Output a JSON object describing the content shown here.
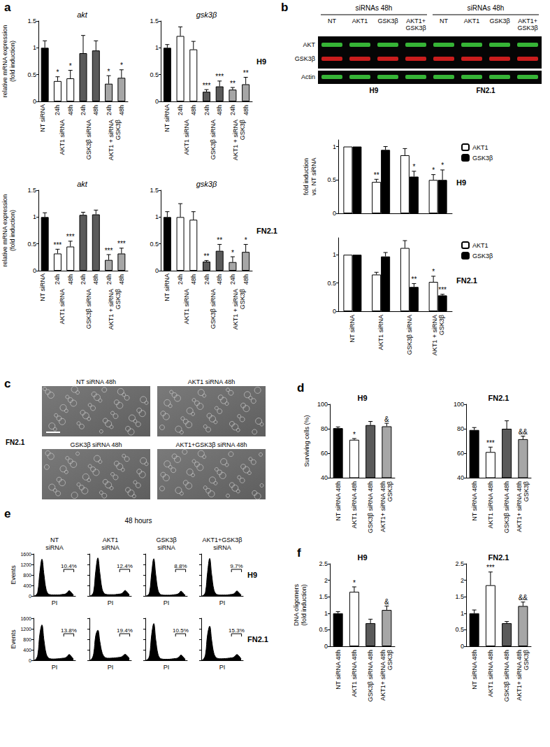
{
  "chart_data": [
    {
      "panel": "a",
      "type": "bar",
      "title": "akt",
      "y_label": "relative mRNA expression\n(fold induction)",
      "categories": [
        null,
        "24h",
        "48h",
        "24h",
        "48h",
        "24h",
        "48h"
      ],
      "bar_groups": [
        "NT siRNA",
        "AKT1 siRNA",
        "AKT1 siRNA",
        "GSK3β siRNA",
        "GSK3β siRNA",
        "AKT1 + siRNA\nGSK3β",
        "AKT1 + siRNA\nGSK3β"
      ],
      "values": [
        1.0,
        0.38,
        0.43,
        0.9,
        0.95,
        0.33,
        0.44
      ],
      "errors": [
        0.13,
        0.08,
        0.15,
        0.33,
        0.18,
        0.15,
        0.15
      ],
      "annotations": [
        null,
        "*",
        "*",
        null,
        null,
        "*",
        "*"
      ],
      "colors": [
        "#000000",
        "#ffffff",
        "#ffffff",
        "#5a5a5a",
        "#5a5a5a",
        "#a6a6a6",
        "#a6a6a6"
      ],
      "ylim": [
        0,
        1.5
      ],
      "yticks": [
        0,
        0.5,
        1,
        1.5
      ]
    },
    {
      "panel": "a",
      "type": "bar",
      "title": "gsk3β",
      "subtitle": "H9",
      "categories": [
        null,
        "24h",
        "48h",
        "24h",
        "48h",
        "24h",
        "48h"
      ],
      "bar_groups": [
        "NT siRNA",
        "AKT1 siRNA",
        "AKT1 siRNA",
        "GSK3β siRNA",
        "GSK3β siRNA",
        "AKT1 + siRNA\nGSK3β",
        "AKT1 + siRNA\nGSK3β"
      ],
      "values": [
        1.0,
        1.22,
        0.97,
        0.18,
        0.28,
        0.22,
        0.32
      ],
      "errors": [
        0.06,
        0.17,
        0.15,
        0.04,
        0.1,
        0.04,
        0.13
      ],
      "annotations": [
        null,
        null,
        null,
        "***",
        "***",
        "**",
        "**"
      ],
      "colors": [
        "#000000",
        "#ffffff",
        "#ffffff",
        "#5a5a5a",
        "#5a5a5a",
        "#a6a6a6",
        "#a6a6a6"
      ],
      "ylim": [
        0,
        1.5
      ],
      "yticks": [
        0,
        0.5,
        1,
        1.5
      ]
    },
    {
      "panel": "a",
      "type": "bar",
      "title": "akt",
      "y_label": "relative mRNA expression\n(fold induction)",
      "categories": [
        null,
        "24h",
        "48h",
        "24h",
        "48h",
        "24h",
        "48h"
      ],
      "bar_groups": [
        "NT siRNA",
        "AKT1 siRNA",
        "AKT1 siRNA",
        "GSK3β siRNA",
        "GSK3β siRNA",
        "AKT1 + siRNA\nGSK3β",
        "AKT1 + siRNA\nGSK3β"
      ],
      "values": [
        1.0,
        0.32,
        0.45,
        1.04,
        1.05,
        0.2,
        0.32
      ],
      "errors": [
        0.08,
        0.08,
        0.1,
        0.05,
        0.08,
        0.1,
        0.1
      ],
      "annotations": [
        null,
        "***",
        "***",
        null,
        null,
        "***",
        "***"
      ],
      "colors": [
        "#000000",
        "#ffffff",
        "#ffffff",
        "#5a5a5a",
        "#5a5a5a",
        "#a6a6a6",
        "#a6a6a6"
      ],
      "ylim": [
        0,
        1.5
      ],
      "yticks": [
        0,
        0.5,
        1,
        1.5
      ]
    },
    {
      "panel": "a",
      "type": "bar",
      "title": "gsk3β",
      "subtitle": "FN2.1",
      "categories": [
        null,
        "24h",
        "48h",
        "24h",
        "48h",
        "24h",
        "48h"
      ],
      "bar_groups": [
        "NT siRNA",
        "AKT1 siRNA",
        "AKT1 siRNA",
        "GSK3β siRNA",
        "GSK3β siRNA",
        "AKT1 + siRNA\nGSK3β",
        "AKT1 + siRNA\nGSK3β"
      ],
      "values": [
        1.0,
        1.0,
        0.95,
        0.17,
        0.37,
        0.16,
        0.35
      ],
      "errors": [
        0.1,
        0.25,
        0.15,
        0.02,
        0.12,
        0.1,
        0.14
      ],
      "annotations": [
        null,
        null,
        null,
        "**",
        "**",
        "*",
        "*"
      ],
      "colors": [
        "#000000",
        "#ffffff",
        "#ffffff",
        "#5a5a5a",
        "#5a5a5a",
        "#a6a6a6",
        "#a6a6a6"
      ],
      "ylim": [
        0,
        1.5
      ],
      "yticks": [
        0,
        0.5,
        1,
        1.5
      ]
    },
    {
      "panel": "b",
      "type": "bar",
      "subtitle": "H9",
      "y_label": "fold induction\nvs. NT siRNA",
      "categories": [
        null,
        null,
        null,
        null
      ],
      "series": [
        {
          "name": "AKT1",
          "color": "#ffffff",
          "values": [
            1,
            0.47,
            0.87,
            0.5
          ],
          "errors": [
            0,
            0.04,
            0.1,
            0.08
          ],
          "annotations": [
            null,
            "**",
            null,
            "*"
          ]
        },
        {
          "name": "GSK3β",
          "color": "#000000",
          "values": [
            1,
            0.95,
            0.55,
            0.5
          ],
          "errors": [
            0,
            0.05,
            0.08,
            0.15
          ],
          "annotations": [
            null,
            null,
            "*",
            "*"
          ]
        }
      ],
      "legend": "right",
      "ylim": [
        0,
        1.1
      ],
      "yticks": [
        0,
        0.5,
        1
      ],
      "tick_labels": "y"
    },
    {
      "panel": "b",
      "type": "bar",
      "subtitle": "FN2.1",
      "categories": [
        "NT siRNA",
        "AKT1 siRNA",
        "GSK3β siRNA",
        "AKT1 + siRNA\nGSK3β"
      ],
      "series": [
        {
          "name": "AKT1",
          "color": "#ffffff",
          "values": [
            1,
            0.65,
            1.12,
            0.52
          ],
          "errors": [
            0,
            0.04,
            0.13,
            0.1
          ],
          "annotations": [
            null,
            null,
            null,
            "*"
          ]
        },
        {
          "name": "GSK3β",
          "color": "#000000",
          "values": [
            1,
            0.97,
            0.43,
            0.28
          ],
          "errors": [
            0,
            0.07,
            0.06,
            0.02
          ],
          "annotations": [
            null,
            null,
            "**",
            "***"
          ]
        }
      ],
      "legend": "right",
      "ylim": [
        0,
        1.3
      ],
      "yticks": [
        0,
        0.5,
        1
      ]
    },
    {
      "panel": "d",
      "type": "bar",
      "title": "H9",
      "y_label": "Surviving cells (%)",
      "categories": [
        "NT siRNA 48h",
        "AKT1 siRNA 48h",
        "GSK3β siRNA 48h",
        "AKT1+ siRNA 48h\nGSK3β"
      ],
      "values": [
        80.5,
        71,
        83,
        82
      ],
      "errors": [
        1,
        1,
        3,
        2.5
      ],
      "annotations": [
        null,
        "*",
        null,
        "&"
      ],
      "colors": [
        "#000000",
        "#ffffff",
        "#5a5a5a",
        "#a6a6a6"
      ],
      "ylim": [
        40,
        100
      ],
      "yticks": [
        40,
        60,
        80,
        100
      ]
    },
    {
      "panel": "d",
      "type": "bar",
      "title": "FN2.1",
      "categories": [
        "NT siRNA 48h",
        "AKT1 siRNA 48h",
        "GSK3β siRNA 48h",
        "AKT1+ siRNA 48h\nGSK3β"
      ],
      "values": [
        79,
        61,
        80,
        71.5
      ],
      "errors": [
        2,
        4,
        6.5,
        2.5
      ],
      "annotations": [
        null,
        "***",
        null,
        "&&"
      ],
      "colors": [
        "#000000",
        "#ffffff",
        "#5a5a5a",
        "#a6a6a6"
      ],
      "ylim": [
        40,
        100
      ],
      "yticks": [
        40,
        60,
        80,
        100
      ]
    },
    {
      "panel": "e",
      "type": "area",
      "title": "NT\nsiRNA",
      "y_label": "Events",
      "x_label": "PI",
      "color": "#000000",
      "x": [
        0,
        50,
        100,
        150,
        200,
        250,
        300,
        350,
        400,
        450,
        500,
        550,
        600,
        650,
        700,
        750,
        800,
        850,
        900,
        950
      ],
      "values": [
        0,
        20,
        150,
        900,
        1400,
        800,
        250,
        80,
        50,
        40,
        40,
        40,
        40,
        50,
        60,
        70,
        120,
        200,
        130,
        40
      ],
      "gate": [
        720,
        960
      ],
      "annotation": {
        "value": 10.4,
        "label": "10.4%"
      },
      "xlim": [
        0,
        1000
      ],
      "ylim": [
        0,
        1600
      ],
      "yticks": [
        0,
        400,
        800,
        1200,
        1600
      ],
      "tick_labels": "y"
    },
    {
      "panel": "e",
      "type": "area",
      "title": "AKT1\nsiRNA",
      "x_label": "PI",
      "color": "#000000",
      "x": [
        0,
        50,
        100,
        150,
        200,
        250,
        300,
        350,
        400,
        450,
        500,
        550,
        600,
        650,
        700,
        750,
        800,
        850,
        900,
        950
      ],
      "values": [
        0,
        25,
        170,
        950,
        1450,
        850,
        280,
        100,
        60,
        50,
        50,
        50,
        50,
        60,
        70,
        80,
        130,
        210,
        140,
        45
      ],
      "gate": [
        720,
        960
      ],
      "annotation": {
        "value": 12.4,
        "label": "12.4%"
      },
      "xlim": [
        0,
        1000
      ],
      "ylim": [
        0,
        1600
      ],
      "yticks": [
        0,
        400,
        800,
        1200,
        1600
      ],
      "tick_labels": false
    },
    {
      "panel": "e",
      "type": "area",
      "title": "GSK3β\nsiRNA",
      "x_label": "PI",
      "color": "#000000",
      "x": [
        0,
        50,
        100,
        150,
        200,
        250,
        300,
        350,
        400,
        450,
        500,
        550,
        600,
        650,
        700,
        750,
        800,
        850,
        900,
        950
      ],
      "values": [
        0,
        15,
        140,
        880,
        1420,
        780,
        230,
        70,
        40,
        30,
        30,
        30,
        30,
        40,
        50,
        60,
        100,
        180,
        110,
        30
      ],
      "gate": [
        720,
        960
      ],
      "annotation": {
        "value": 8.8,
        "label": "8.8%"
      },
      "xlim": [
        0,
        1000
      ],
      "ylim": [
        0,
        1600
      ],
      "yticks": [
        0,
        400,
        800,
        1200,
        1600
      ],
      "tick_labels": false
    },
    {
      "panel": "e",
      "type": "area",
      "title": "AKT1+GSK3β\nsiRNA",
      "subtitle": "H9",
      "x_label": "PI",
      "color": "#000000",
      "x": [
        0,
        50,
        100,
        150,
        200,
        250,
        300,
        350,
        400,
        450,
        500,
        550,
        600,
        650,
        700,
        750,
        800,
        850,
        900,
        950
      ],
      "values": [
        0,
        20,
        150,
        900,
        1430,
        790,
        240,
        80,
        45,
        35,
        35,
        35,
        35,
        45,
        55,
        65,
        110,
        190,
        120,
        35
      ],
      "gate": [
        720,
        960
      ],
      "annotation": {
        "value": 9.7,
        "label": "9.7%"
      },
      "xlim": [
        0,
        1000
      ],
      "ylim": [
        0,
        1600
      ],
      "yticks": [
        0,
        400,
        800,
        1200,
        1600
      ],
      "tick_labels": false
    },
    {
      "panel": "e",
      "type": "area",
      "y_label": "Events",
      "x_label": "PI",
      "color": "#000000",
      "x": [
        0,
        50,
        100,
        150,
        200,
        250,
        300,
        350,
        400,
        450,
        500,
        550,
        600,
        650,
        700,
        750,
        800,
        850,
        900,
        950
      ],
      "values": [
        0,
        30,
        200,
        1000,
        1350,
        750,
        260,
        100,
        60,
        50,
        50,
        55,
        60,
        70,
        80,
        90,
        140,
        220,
        150,
        50
      ],
      "gate": [
        720,
        960
      ],
      "annotation": {
        "value": 13.8,
        "label": "13.8%"
      },
      "xlim": [
        0,
        1000
      ],
      "ylim": [
        0,
        1600
      ],
      "yticks": [
        0,
        400,
        800,
        1200,
        1600
      ],
      "tick_labels": "y"
    },
    {
      "panel": "e",
      "type": "area",
      "x_label": "PI",
      "color": "#000000",
      "x": [
        0,
        50,
        100,
        150,
        200,
        250,
        300,
        350,
        400,
        450,
        500,
        550,
        600,
        650,
        700,
        750,
        800,
        850,
        900,
        950
      ],
      "values": [
        0,
        40,
        250,
        950,
        1150,
        700,
        300,
        140,
        90,
        80,
        80,
        85,
        90,
        100,
        110,
        120,
        170,
        230,
        170,
        70
      ],
      "gate": [
        720,
        960
      ],
      "annotation": {
        "value": 19.4,
        "label": "19.4%"
      },
      "xlim": [
        0,
        1000
      ],
      "ylim": [
        0,
        1600
      ],
      "yticks": [
        0,
        400,
        800,
        1200,
        1600
      ],
      "tick_labels": false
    },
    {
      "panel": "e",
      "type": "area",
      "x_label": "PI",
      "color": "#000000",
      "x": [
        0,
        50,
        100,
        150,
        200,
        250,
        300,
        350,
        400,
        450,
        500,
        550,
        600,
        650,
        700,
        750,
        800,
        850,
        900,
        950
      ],
      "values": [
        0,
        25,
        180,
        980,
        1400,
        760,
        240,
        80,
        50,
        40,
        40,
        40,
        45,
        55,
        65,
        75,
        120,
        200,
        130,
        40
      ],
      "gate": [
        720,
        960
      ],
      "annotation": {
        "value": 10.5,
        "label": "10.5%"
      },
      "xlim": [
        0,
        1000
      ],
      "ylim": [
        0,
        1600
      ],
      "yticks": [
        0,
        400,
        800,
        1200,
        1600
      ],
      "tick_labels": false
    },
    {
      "panel": "e",
      "type": "area",
      "subtitle": "FN2.1",
      "x_label": "PI",
      "color": "#000000",
      "x": [
        0,
        50,
        100,
        150,
        200,
        250,
        300,
        350,
        400,
        450,
        500,
        550,
        600,
        650,
        700,
        750,
        800,
        850,
        900,
        950
      ],
      "values": [
        0,
        35,
        220,
        980,
        1300,
        740,
        270,
        110,
        70,
        60,
        60,
        65,
        70,
        80,
        90,
        100,
        150,
        220,
        160,
        55
      ],
      "gate": [
        720,
        960
      ],
      "annotation": {
        "value": 15.3,
        "label": "15.3%"
      },
      "xlim": [
        0,
        1000
      ],
      "ylim": [
        0,
        1600
      ],
      "yticks": [
        0,
        400,
        800,
        1200,
        1600
      ],
      "tick_labels": false
    },
    {
      "panel": "f",
      "type": "bar",
      "title": "H9",
      "y_label": "DNA oligomers\n(fold induction)",
      "categories": [
        "NT siRNA 48h",
        "AKT1 siRNA 48h",
        "GSK3β siRNA 48h",
        "AKT1+ siRNA 48h\nGSK3β"
      ],
      "values": [
        1,
        1.65,
        0.7,
        1.1
      ],
      "errors": [
        0.05,
        0.15,
        0.12,
        0.12
      ],
      "annotations": [
        null,
        "*",
        null,
        "&"
      ],
      "colors": [
        "#000000",
        "#ffffff",
        "#5a5a5a",
        "#a6a6a6"
      ],
      "ylim": [
        0,
        2.5
      ],
      "yticks": [
        0,
        0.5,
        1,
        1.5,
        2,
        2.5
      ]
    },
    {
      "panel": "f",
      "type": "bar",
      "title": "FN2.1",
      "categories": [
        "NT siRNA 48h",
        "AKT1 siRNA 48h",
        "GSK3β siRNA 48h",
        "AKT1+ siRNA 48h\nGSK3β"
      ],
      "values": [
        1,
        1.85,
        0.7,
        1.22
      ],
      "errors": [
        0.1,
        0.4,
        0.05,
        0.12
      ],
      "annotations": [
        null,
        "***",
        null,
        "&&"
      ],
      "colors": [
        "#000000",
        "#ffffff",
        "#5a5a5a",
        "#a6a6a6"
      ],
      "ylim": [
        0,
        2.5
      ],
      "yticks": [
        0,
        0.5,
        1,
        1.5,
        2,
        2.5
      ]
    }
  ],
  "blot": {
    "panel": "b",
    "headers": [
      "siRNAs 48h",
      "siRNAs 48h"
    ],
    "lanes": [
      "NT",
      "AKT1",
      "GSK3β",
      "AKT1+\nGSK3β",
      "NT",
      "AKT1",
      "GSK3β",
      "AKT1+\nGSK3β"
    ],
    "rows": [
      {
        "label": "AKT",
        "color": "#3cc83c"
      },
      {
        "label": "GSK3β",
        "color": "#e02020"
      },
      {
        "label": "Actin",
        "color": "#3cc83c"
      }
    ],
    "cells": [
      "H9",
      "FN2.1"
    ]
  },
  "micrographs": {
    "panel": "c",
    "row_label": "FN2.1",
    "images": [
      "NT siRNA 48h",
      "AKT1 siRNA 48h",
      "GSK3β siRNA 48h",
      "AKT1+GSK3β siRNA 48h"
    ]
  },
  "headers": [
    {
      "panel": "e",
      "text": "48 hours"
    }
  ]
}
